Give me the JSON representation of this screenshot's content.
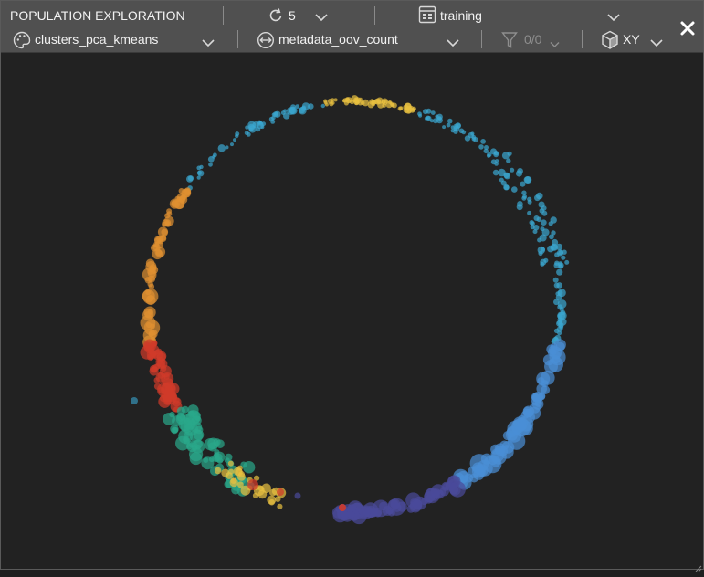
{
  "toolbar": {
    "title": "POPULATION EXPLORATION",
    "refresh_count": "5",
    "dataset": "training",
    "color_by": "clusters_pca_kmeans",
    "size_by": "metadata_oov_count",
    "filter": "0/0",
    "view_mode": "XY"
  },
  "colors": {
    "toolbar_bg": "#505050",
    "canvas_bg": "#222222",
    "cluster_blue": "#4a8fd6",
    "cluster_cyan": "#3aa6d0",
    "cluster_yellow": "#e8c040",
    "cluster_orange": "#e09030",
    "cluster_red": "#d03a2a",
    "cluster_teal": "#2aa88a",
    "cluster_indigo": "#4a4a9a"
  }
}
